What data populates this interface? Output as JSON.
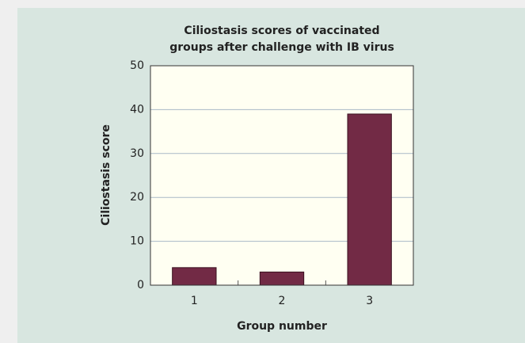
{
  "chart_data": {
    "type": "bar",
    "title": [
      "Ciliostasis scores of vaccinated",
      "groups after challenge with IB virus"
    ],
    "x_label": "Group number",
    "y_label": "Ciliostasis score",
    "categories": [
      "1",
      "2",
      "3"
    ],
    "values": [
      4,
      3,
      39
    ],
    "color": "#722a45",
    "ylim": [
      0,
      50
    ],
    "yticks": [
      0,
      10,
      20,
      30,
      40,
      50
    ],
    "grid": true
  }
}
